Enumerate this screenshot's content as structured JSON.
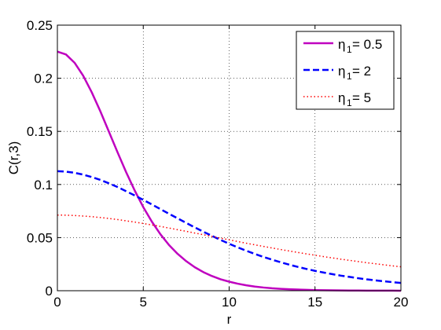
{
  "chart_data": {
    "type": "line",
    "title": "",
    "xlabel": "r",
    "ylabel": "C(r,3)",
    "xlim": [
      0,
      20
    ],
    "ylim": [
      0,
      0.25
    ],
    "xticks": [
      0,
      5,
      10,
      15,
      20
    ],
    "xtick_labels": [
      "0",
      "5",
      "10",
      "15",
      "20"
    ],
    "yticks": [
      0,
      0.05,
      0.1,
      0.15,
      0.2,
      0.25
    ],
    "ytick_labels": [
      "0",
      "0.05",
      "0.1",
      "0.15",
      "0.2",
      "0.25"
    ],
    "grid": true,
    "legend_position": "top-right",
    "x": [
      0,
      0.5,
      1,
      1.5,
      2,
      2.5,
      3,
      3.5,
      4,
      4.5,
      5,
      5.5,
      6,
      6.5,
      7,
      7.5,
      8,
      8.5,
      9,
      9.5,
      10,
      10.5,
      11,
      11.5,
      12,
      12.5,
      13,
      13.5,
      14,
      14.5,
      15,
      15.5,
      16,
      16.5,
      17,
      17.5,
      18,
      18.5,
      19,
      19.5,
      20
    ],
    "series": [
      {
        "legend_sub": "1",
        "legend_value": " = 0.5",
        "color": "#bf00bf",
        "style": "solid",
        "values": [
          0.2251,
          0.2224,
          0.2146,
          0.2024,
          0.1868,
          0.1689,
          0.1497,
          0.1304,
          0.1117,
          0.0944,
          0.0787,
          0.065,
          0.0531,
          0.043,
          0.0347,
          0.0278,
          0.0221,
          0.0175,
          0.0138,
          0.0108,
          0.0085,
          0.0066,
          0.0051,
          0.0039,
          0.003,
          0.0023,
          0.0018,
          0.0014,
          0.0011,
          0.0008,
          0.0006,
          0.0005,
          0.0004,
          0.0003,
          0.0002,
          0.0002,
          0.0001,
          0.0001,
          0.0001,
          0.0001,
          0.0
        ]
      },
      {
        "legend_sub": "1",
        "legend_value": " = 2",
        "color": "#0000ff",
        "style": "dashed",
        "values": [
          0.1125,
          0.1121,
          0.111,
          0.1093,
          0.107,
          0.1043,
          0.1011,
          0.0976,
          0.0937,
          0.0897,
          0.0855,
          0.0812,
          0.0768,
          0.0724,
          0.0681,
          0.0638,
          0.0596,
          0.0555,
          0.0516,
          0.0478,
          0.0442,
          0.0408,
          0.0376,
          0.0346,
          0.0318,
          0.0292,
          0.0268,
          0.0245,
          0.0224,
          0.0205,
          0.0187,
          0.0171,
          0.0156,
          0.0142,
          0.013,
          0.0118,
          0.0107,
          0.0098,
          0.0089,
          0.0081,
          0.0073
        ]
      },
      {
        "legend_sub": "1",
        "legend_value": " = 5",
        "color": "#ff0000",
        "style": "dotted",
        "values": [
          0.0712,
          0.0711,
          0.0708,
          0.0703,
          0.0697,
          0.0689,
          0.068,
          0.067,
          0.0658,
          0.0646,
          0.0633,
          0.0619,
          0.0605,
          0.059,
          0.0574,
          0.0559,
          0.0543,
          0.0527,
          0.0511,
          0.0495,
          0.0479,
          0.0463,
          0.0447,
          0.0432,
          0.0417,
          0.0402,
          0.0388,
          0.0374,
          0.036,
          0.0347,
          0.0334,
          0.0321,
          0.0309,
          0.0297,
          0.0286,
          0.0275,
          0.0264,
          0.0254,
          0.0244,
          0.0234,
          0.0225
        ]
      }
    ]
  }
}
